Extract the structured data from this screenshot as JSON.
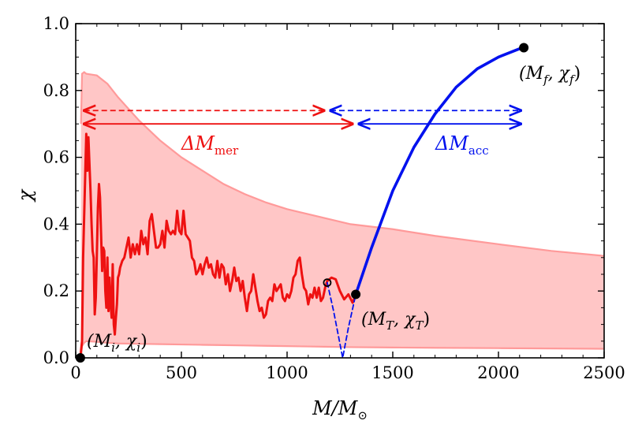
{
  "chart_data": {
    "type": "line",
    "xlabel": "M/M",
    "xlabel_symbol": "⊙",
    "ylabel": "χ",
    "xlim": [
      0,
      2500
    ],
    "ylim": [
      0,
      1.0
    ],
    "xticks": [
      0,
      500,
      1000,
      1500,
      2000,
      2500
    ],
    "xtick_labels": [
      "0",
      "500",
      "1000",
      "1500",
      "2000",
      "2500"
    ],
    "yticks": [
      0,
      0.2,
      0.4,
      0.6,
      0.8,
      1.0
    ],
    "ytick_labels": [
      "0.0",
      "0.2",
      "0.4",
      "0.6",
      "0.8",
      "1.0"
    ],
    "colors": {
      "merger": "#ee1111",
      "accretion": "#0011ee",
      "band_fill": "#ffbcbc",
      "band_edge": "#ff9a9a"
    },
    "band": {
      "x": [
        25,
        30,
        40,
        50,
        100,
        150,
        200,
        300,
        400,
        500,
        600,
        700,
        800,
        900,
        1000,
        1100,
        1200,
        1300,
        1500,
        1700,
        2000,
        2250,
        2500
      ],
      "upper": [
        0.7,
        0.85,
        0.855,
        0.85,
        0.845,
        0.82,
        0.78,
        0.71,
        0.65,
        0.6,
        0.56,
        0.52,
        0.49,
        0.465,
        0.445,
        0.43,
        0.415,
        0.4,
        0.385,
        0.365,
        0.34,
        0.32,
        0.305
      ],
      "lower": [
        0.0,
        0.035,
        0.045,
        0.05,
        0.048,
        0.045,
        0.043,
        0.042,
        0.041,
        0.04,
        0.039,
        0.038,
        0.037,
        0.036,
        0.035,
        0.034,
        0.033,
        0.032,
        0.031,
        0.03,
        0.029,
        0.028,
        0.027
      ]
    },
    "series": [
      {
        "name": "merger history",
        "color": "#ee1111",
        "style": "solid",
        "x": [
          22,
          25,
          30,
          35,
          45,
          50,
          55,
          60,
          65,
          70,
          75,
          80,
          85,
          90,
          95,
          100,
          105,
          110,
          115,
          120,
          125,
          130,
          135,
          140,
          145,
          150,
          155,
          160,
          165,
          170,
          175,
          180,
          185,
          190,
          195,
          200,
          205,
          210,
          220,
          230,
          240,
          250,
          260,
          270,
          280,
          290,
          300,
          310,
          320,
          330,
          340,
          350,
          360,
          370,
          380,
          390,
          400,
          410,
          420,
          430,
          440,
          450,
          460,
          470,
          480,
          490,
          500,
          510,
          520,
          530,
          540,
          550,
          560,
          570,
          580,
          590,
          600,
          610,
          620,
          630,
          640,
          650,
          660,
          670,
          680,
          690,
          700,
          710,
          720,
          730,
          740,
          750,
          760,
          770,
          780,
          790,
          800,
          810,
          820,
          830,
          840,
          850,
          860,
          870,
          880,
          890,
          900,
          910,
          920,
          930,
          940,
          950,
          960,
          970,
          980,
          990,
          1000,
          1010,
          1020,
          1030,
          1040,
          1050,
          1060,
          1070,
          1080,
          1090,
          1100,
          1110,
          1120,
          1130,
          1140,
          1150,
          1160,
          1170,
          1180,
          1190
        ],
        "y": [
          0.0,
          0.02,
          0.05,
          0.3,
          0.55,
          0.67,
          0.56,
          0.66,
          0.58,
          0.5,
          0.4,
          0.32,
          0.3,
          0.13,
          0.18,
          0.31,
          0.45,
          0.52,
          0.48,
          0.37,
          0.26,
          0.33,
          0.32,
          0.2,
          0.15,
          0.3,
          0.14,
          0.24,
          0.16,
          0.12,
          0.28,
          0.1,
          0.07,
          0.12,
          0.16,
          0.24,
          0.25,
          0.27,
          0.29,
          0.3,
          0.33,
          0.36,
          0.3,
          0.34,
          0.31,
          0.34,
          0.31,
          0.38,
          0.34,
          0.36,
          0.31,
          0.41,
          0.43,
          0.38,
          0.33,
          0.33,
          0.34,
          0.38,
          0.33,
          0.41,
          0.38,
          0.37,
          0.38,
          0.37,
          0.44,
          0.38,
          0.37,
          0.44,
          0.37,
          0.36,
          0.35,
          0.3,
          0.29,
          0.25,
          0.26,
          0.28,
          0.25,
          0.28,
          0.3,
          0.27,
          0.28,
          0.25,
          0.24,
          0.29,
          0.24,
          0.28,
          0.27,
          0.22,
          0.25,
          0.2,
          0.23,
          0.27,
          0.23,
          0.24,
          0.2,
          0.23,
          0.18,
          0.14,
          0.19,
          0.2,
          0.25,
          0.21,
          0.17,
          0.14,
          0.15,
          0.12,
          0.13,
          0.17,
          0.18,
          0.17,
          0.22,
          0.2,
          0.21,
          0.22,
          0.18,
          0.17,
          0.19,
          0.18,
          0.2,
          0.24,
          0.25,
          0.29,
          0.3,
          0.25,
          0.21,
          0.2,
          0.16,
          0.19,
          0.18,
          0.21,
          0.18,
          0.21,
          0.17,
          0.18,
          0.21,
          0.23
        ]
      },
      {
        "name": "merger tail",
        "color": "#ee1111",
        "style": "solid",
        "x": [
          1190,
          1210,
          1230,
          1250,
          1270,
          1290,
          1310,
          1325
        ],
        "y": [
          0.23,
          0.24,
          0.235,
          0.2,
          0.175,
          0.19,
          0.165,
          0.19
        ]
      },
      {
        "name": "dashed drop",
        "color": "#0011ee",
        "style": "dashed",
        "x": [
          1190,
          1220,
          1263,
          1290,
          1325
        ],
        "y": [
          0.225,
          0.14,
          0.0,
          0.09,
          0.19
        ]
      },
      {
        "name": "accretion",
        "color": "#0011ee",
        "style": "solid",
        "x": [
          1325,
          1400,
          1500,
          1600,
          1700,
          1800,
          1900,
          2000,
          2100,
          2120
        ],
        "y": [
          0.19,
          0.33,
          0.5,
          0.63,
          0.73,
          0.81,
          0.865,
          0.9,
          0.925,
          0.928
        ]
      }
    ],
    "points": [
      {
        "name": "start",
        "x": 22,
        "y": 0.0,
        "filled": true
      },
      {
        "name": "open-circle",
        "x": 1190,
        "y": 0.225,
        "filled": false
      },
      {
        "name": "transition",
        "x": 1325,
        "y": 0.19,
        "filled": true
      },
      {
        "name": "final",
        "x": 2120,
        "y": 0.928,
        "filled": true
      }
    ],
    "arrows": [
      {
        "name": "merger-dashed",
        "color": "#ee1111",
        "style": "dashed",
        "x1": 25,
        "x2": 1190,
        "y": 0.74
      },
      {
        "name": "accretion-dashed",
        "color": "#0011ee",
        "style": "dashed",
        "x1": 1190,
        "x2": 2120,
        "y": 0.74
      },
      {
        "name": "merger-solid",
        "color": "#ee1111",
        "style": "solid",
        "x1": 25,
        "x2": 1325,
        "y": 0.7
      },
      {
        "name": "accretion-solid",
        "color": "#0011ee",
        "style": "solid",
        "x1": 1325,
        "x2": 2120,
        "y": 0.7
      }
    ],
    "annotations": {
      "initial": {
        "base": "(M",
        "sub1": "i",
        "mid": ", χ",
        "sub2": "i",
        "end": ")"
      },
      "transition": {
        "base": "(M",
        "sub1": "T",
        "mid": ", χ",
        "sub2": "T",
        "end": ")"
      },
      "final": {
        "base": "(M",
        "sub1": "f",
        "mid": ", χ",
        "sub2": "f",
        "end": ")"
      },
      "delta_mer": {
        "base": "ΔM",
        "sub": "mer"
      },
      "delta_acc": {
        "base": "ΔM",
        "sub": "acc"
      }
    }
  }
}
